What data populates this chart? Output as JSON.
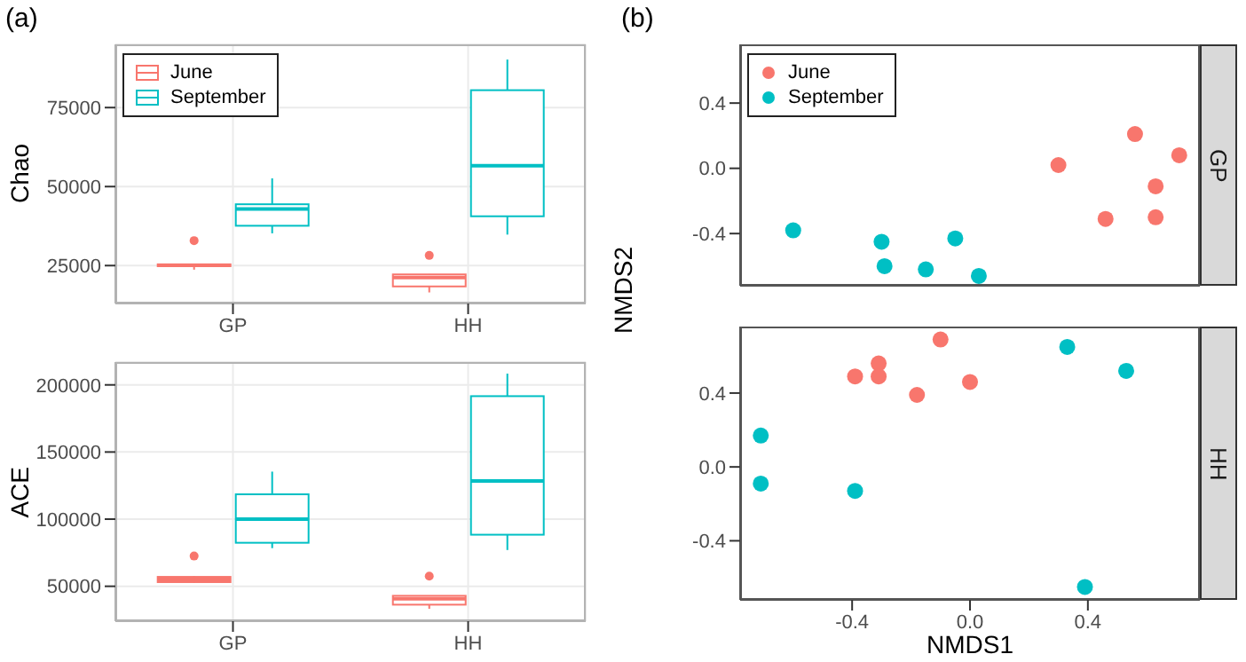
{
  "chart_data": [
    {
      "type": "box",
      "title": "(a)",
      "ylabel": "Chao",
      "categories": [
        "GP",
        "HH"
      ],
      "series": [
        {
          "name": "June",
          "color": "#f8766d",
          "boxes": [
            {
              "low": 23700,
              "q1": 24800,
              "median": 25100,
              "q3": 25400,
              "high": 25600,
              "outliers": [
                32900
              ]
            },
            {
              "low": 16500,
              "q1": 18400,
              "median": 21200,
              "q3": 22200,
              "high": 22300,
              "outliers": [
                28200
              ]
            }
          ]
        },
        {
          "name": "September",
          "color": "#00bfc4",
          "boxes": [
            {
              "low": 35200,
              "q1": 37600,
              "median": 42900,
              "q3": 44400,
              "high": 52600
            },
            {
              "low": 34800,
              "q1": 40600,
              "median": 56600,
              "q3": 80500,
              "high": 90200
            }
          ]
        }
      ],
      "ylim": [
        13000,
        95000
      ],
      "yticks": [
        25000,
        50000,
        75000
      ],
      "grid": true,
      "legend": "top left"
    },
    {
      "type": "box",
      "ylabel": "ACE",
      "categories": [
        "GP",
        "HH"
      ],
      "series": [
        {
          "color": "#f8766d",
          "boxes": [
            {
              "low": 52500,
              "q1": 53100,
              "median": 55000,
              "q3": 57000,
              "high": 57500,
              "outliers": [
                72500
              ]
            },
            {
              "low": 33200,
              "q1": 36300,
              "median": 40700,
              "q3": 42900,
              "high": 43000,
              "outliers": [
                57500
              ]
            }
          ]
        },
        {
          "color": "#00bfc4",
          "boxes": [
            {
              "low": 78400,
              "q1": 82400,
              "median": 100000,
              "q3": 118500,
              "high": 135400
            },
            {
              "low": 77000,
              "q1": 88400,
              "median": 128500,
              "q3": 191600,
              "high": 208400
            }
          ]
        }
      ],
      "ylim": [
        24000,
        217000
      ],
      "yticks": [
        50000,
        100000,
        150000,
        200000
      ],
      "grid": true
    },
    {
      "type": "scatter",
      "title": "(b)",
      "ylabel": "NMDS2",
      "annotations": [
        "GP"
      ],
      "series": [
        {
          "name": "June",
          "color": "#f8766d",
          "x": [
            0.3,
            0.56,
            0.71,
            0.63,
            0.46,
            0.63
          ],
          "values": [
            0.02,
            0.21,
            0.08,
            -0.11,
            -0.31,
            -0.3
          ]
        },
        {
          "name": "September",
          "color": "#00bfc4",
          "x": [
            -0.6,
            -0.3,
            -0.29,
            -0.15,
            -0.05,
            0.03
          ],
          "values": [
            -0.38,
            -0.45,
            -0.6,
            -0.62,
            -0.43,
            -0.66
          ]
        }
      ],
      "xlim": [
        -0.78,
        0.78
      ],
      "ylim": [
        -0.72,
        0.76
      ],
      "yticks": [
        -0.4,
        {
          "value": 0,
          "label": "0.0"
        },
        0.4
      ],
      "tick_labels": "y",
      "marker": "circle",
      "legend": "top left"
    },
    {
      "type": "scatter",
      "xlabel": "NMDS1",
      "annotations": [
        "HH"
      ],
      "series": [
        {
          "color": "#f8766d",
          "x": [
            -0.1,
            -0.31,
            -0.39,
            -0.31,
            -0.18,
            0.0
          ],
          "values": [
            0.69,
            0.56,
            0.49,
            0.49,
            0.39,
            0.46
          ]
        },
        {
          "color": "#00bfc4",
          "x": [
            0.33,
            0.53,
            -0.71,
            -0.71,
            -0.39,
            0.39
          ],
          "values": [
            0.65,
            0.52,
            0.17,
            -0.09,
            -0.13,
            -0.65
          ]
        }
      ],
      "xlim": [
        -0.78,
        0.78
      ],
      "xticks": [
        -0.4,
        {
          "value": 0,
          "label": "0.0"
        },
        0.4
      ],
      "ylim": [
        -0.72,
        0.76
      ],
      "yticks": [
        -0.4,
        {
          "value": 0,
          "label": "0.0"
        },
        0.4
      ],
      "marker": "circle"
    }
  ]
}
